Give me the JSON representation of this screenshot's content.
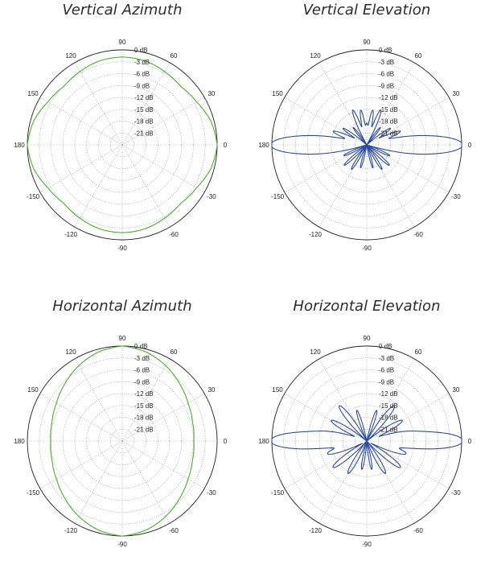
{
  "chart_data": [
    {
      "type": "polar",
      "title": "Vertical Azimuth",
      "series": [
        {
          "color": "#4caf2e"
        }
      ],
      "angle_ticks": [
        "0",
        "30",
        "60",
        "90",
        "120",
        "150",
        "180",
        "-150",
        "-120",
        "-90",
        "-60",
        "-30"
      ],
      "radial_labels": [
        "0 dB",
        "-3 dB",
        "-6 dB",
        "-9 dB",
        "-12 dB",
        "-15 dB",
        "-18 dB",
        "-21 dB"
      ],
      "radial_range_db": [
        -24,
        0
      ],
      "pattern_db": [
        [
          0,
          0
        ],
        [
          15,
          -0.8
        ],
        [
          30,
          -2.3
        ],
        [
          45,
          -3.1
        ],
        [
          60,
          -2.6
        ],
        [
          75,
          -2.0
        ],
        [
          90,
          -1.8
        ],
        [
          105,
          -2.0
        ],
        [
          120,
          -2.6
        ],
        [
          135,
          -3.1
        ],
        [
          150,
          -2.3
        ],
        [
          165,
          -0.8
        ],
        [
          180,
          0
        ],
        [
          195,
          -0.8
        ],
        [
          210,
          -2.3
        ],
        [
          225,
          -3.1
        ],
        [
          240,
          -2.6
        ],
        [
          255,
          -2.0
        ],
        [
          270,
          -1.8
        ],
        [
          285,
          -2.0
        ],
        [
          300,
          -2.6
        ],
        [
          315,
          -3.1
        ],
        [
          330,
          -2.3
        ],
        [
          345,
          -0.8
        ]
      ]
    },
    {
      "type": "polar",
      "title": "Vertical Elevation",
      "series": [
        {
          "color": "#2c4b9e"
        }
      ],
      "angle_ticks": [
        "0",
        "30",
        "60",
        "90",
        "120",
        "150",
        "180",
        "-150",
        "-120",
        "-90",
        "-60",
        "-30"
      ],
      "radial_labels": [
        "0 dB",
        "-3 dB",
        "-6 dB",
        "-9 dB",
        "-12 dB",
        "-15 dB",
        "-18 dB",
        "-21 dB"
      ],
      "radial_range_db": [
        -24,
        0
      ],
      "lobes_db": [
        [
          0,
          0,
          5
        ],
        [
          180,
          0,
          5
        ],
        [
          10,
          -17,
          4
        ],
        [
          170,
          -17,
          4
        ],
        [
          22,
          -16,
          4
        ],
        [
          158,
          -16,
          4
        ],
        [
          35,
          -18,
          4
        ],
        [
          145,
          -18,
          4
        ],
        [
          52,
          -20,
          4
        ],
        [
          128,
          -20,
          4
        ],
        [
          68,
          -15.5,
          4
        ],
        [
          112,
          -15.5,
          4
        ],
        [
          80,
          -16.5,
          3.5
        ],
        [
          100,
          -16.5,
          3.5
        ],
        [
          90,
          -20.5,
          4
        ],
        [
          -10,
          -17,
          4
        ],
        [
          -170,
          -17,
          4
        ],
        [
          -25,
          -19,
          4
        ],
        [
          -155,
          -19,
          4
        ],
        [
          -42,
          -17.5,
          4
        ],
        [
          -138,
          -17.5,
          4
        ],
        [
          -58,
          -18,
          4
        ],
        [
          -122,
          -18,
          4
        ],
        [
          -75,
          -19.5,
          4
        ],
        [
          -105,
          -19.5,
          4
        ]
      ]
    },
    {
      "type": "polar",
      "title": "Horizontal Azimuth",
      "series": [
        {
          "color": "#4caf2e"
        }
      ],
      "angle_ticks": [
        "0",
        "30",
        "60",
        "90",
        "120",
        "150",
        "180",
        "-150",
        "-120",
        "-90",
        "-60",
        "-30"
      ],
      "radial_labels": [
        "0 dB",
        "-3 dB",
        "-6 dB",
        "-9 dB",
        "-12 dB",
        "-15 dB",
        "-18 dB",
        "-21 dB"
      ],
      "radial_range_db": [
        -24,
        0
      ],
      "pattern_db": [
        [
          0,
          -5.9
        ],
        [
          15,
          -5.6
        ],
        [
          30,
          -4.8
        ],
        [
          45,
          -3.5
        ],
        [
          60,
          -2.0
        ],
        [
          75,
          -0.7
        ],
        [
          90,
          0
        ],
        [
          105,
          -0.7
        ],
        [
          120,
          -2.0
        ],
        [
          135,
          -3.5
        ],
        [
          150,
          -4.8
        ],
        [
          165,
          -5.6
        ],
        [
          180,
          -5.9
        ],
        [
          195,
          -5.6
        ],
        [
          210,
          -4.8
        ],
        [
          225,
          -3.5
        ],
        [
          240,
          -2.0
        ],
        [
          255,
          -0.7
        ],
        [
          270,
          0
        ],
        [
          285,
          -0.7
        ],
        [
          300,
          -2.0
        ],
        [
          315,
          -3.5
        ],
        [
          330,
          -4.8
        ],
        [
          345,
          -5.6
        ]
      ]
    },
    {
      "type": "polar",
      "title": "Horizontal Elevation",
      "series": [
        {
          "color": "#2c4b9e"
        }
      ],
      "angle_ticks": [
        "0",
        "30",
        "60",
        "90",
        "120",
        "150",
        "180",
        "-150",
        "-120",
        "-90",
        "-60",
        "-30"
      ],
      "radial_labels": [
        "0 dB",
        "-3 dB",
        "-6 dB",
        "-9 dB",
        "-12 dB",
        "-15 dB",
        "-18 dB",
        "-21 dB"
      ],
      "radial_range_db": [
        -24,
        0
      ],
      "lobes_db": [
        [
          0,
          0,
          5
        ],
        [
          180,
          0,
          5
        ],
        [
          12,
          -15,
          5
        ],
        [
          168,
          -15,
          5
        ],
        [
          30,
          -14.5,
          5
        ],
        [
          150,
          -14.5,
          5
        ],
        [
          52,
          -13.5,
          5
        ],
        [
          128,
          -13.5,
          5
        ],
        [
          72,
          -17,
          4
        ],
        [
          108,
          -17,
          4
        ],
        [
          -18,
          -14.5,
          5
        ],
        [
          -162,
          -14.5,
          5
        ],
        [
          -38,
          -14,
          5
        ],
        [
          -142,
          -14,
          5
        ],
        [
          -60,
          -15.5,
          5
        ],
        [
          -120,
          -15.5,
          5
        ],
        [
          -80,
          -18,
          4
        ],
        [
          -100,
          -18,
          4
        ]
      ]
    }
  ]
}
